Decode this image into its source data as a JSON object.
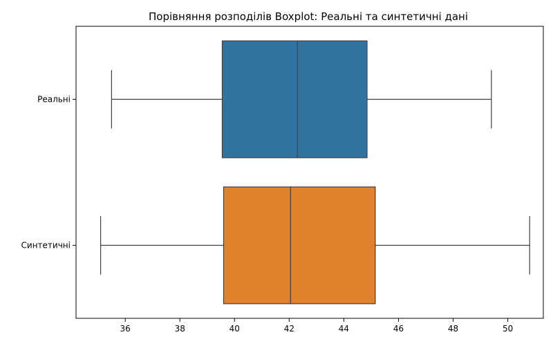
{
  "chart_data": {
    "type": "boxplot",
    "orientation": "horizontal",
    "title": "Порівняння розподілів Boxplot: Реальні та синтетичні дані",
    "xlabel": "",
    "ylabel": "",
    "xlim": [
      34.2,
      51.3
    ],
    "xticks": [
      36,
      38,
      40,
      42,
      44,
      46,
      48,
      50
    ],
    "grid": false,
    "categories": [
      "Реальні",
      "Синтетичні"
    ],
    "series": [
      {
        "category": "Реальні",
        "color": "#3274a1",
        "whislo": 35.5,
        "q1": 39.55,
        "median": 42.3,
        "q3": 44.85,
        "whishi": 49.4
      },
      {
        "category": "Синтетичні",
        "color": "#e1812c",
        "whislo": 35.1,
        "q1": 39.6,
        "median": 42.05,
        "q3": 45.15,
        "whishi": 50.8
      }
    ]
  }
}
